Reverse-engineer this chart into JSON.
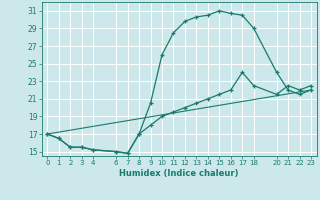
{
  "xlabel": "Humidex (Indice chaleur)",
  "background_color": "#cce8ea",
  "grid_color": "#ffffff",
  "line_color": "#1a7a6e",
  "xlim": [
    -0.5,
    23.5
  ],
  "ylim": [
    14.5,
    32
  ],
  "xticks": [
    0,
    1,
    2,
    3,
    4,
    6,
    7,
    8,
    9,
    10,
    11,
    12,
    13,
    14,
    15,
    16,
    17,
    18,
    20,
    21,
    22,
    23
  ],
  "xtick_labels": [
    "0",
    "1",
    "2",
    "3",
    "4",
    "6",
    "7",
    "8",
    "9",
    "10",
    "11",
    "12",
    "13",
    "14",
    "15",
    "16",
    "17",
    "18",
    "20",
    "21",
    "22",
    "23"
  ],
  "yticks": [
    15,
    17,
    19,
    21,
    23,
    25,
    27,
    29,
    31
  ],
  "line1_x": [
    0,
    1,
    2,
    3,
    4,
    6,
    7,
    8,
    9,
    10,
    11,
    12,
    13,
    14,
    15,
    16,
    17,
    18,
    20,
    21,
    22,
    23
  ],
  "line1_y": [
    17.0,
    16.5,
    15.5,
    15.5,
    15.2,
    15.0,
    14.8,
    17.0,
    20.5,
    26.0,
    28.5,
    29.8,
    30.3,
    30.5,
    31.0,
    30.7,
    30.5,
    29.0,
    24.0,
    22.0,
    21.5,
    22.0
  ],
  "line2_x": [
    0,
    1,
    2,
    3,
    4,
    6,
    7,
    8,
    9,
    10,
    11,
    12,
    13,
    14,
    15,
    16,
    17,
    18,
    20,
    21,
    22,
    23
  ],
  "line2_y": [
    17.0,
    16.5,
    15.5,
    15.5,
    15.2,
    15.0,
    14.8,
    17.0,
    18.0,
    19.0,
    19.5,
    20.0,
    20.5,
    21.0,
    21.5,
    22.0,
    24.0,
    22.5,
    21.5,
    22.5,
    22.0,
    22.5
  ],
  "line3_x": [
    0,
    23
  ],
  "line3_y": [
    17.0,
    22.0
  ]
}
